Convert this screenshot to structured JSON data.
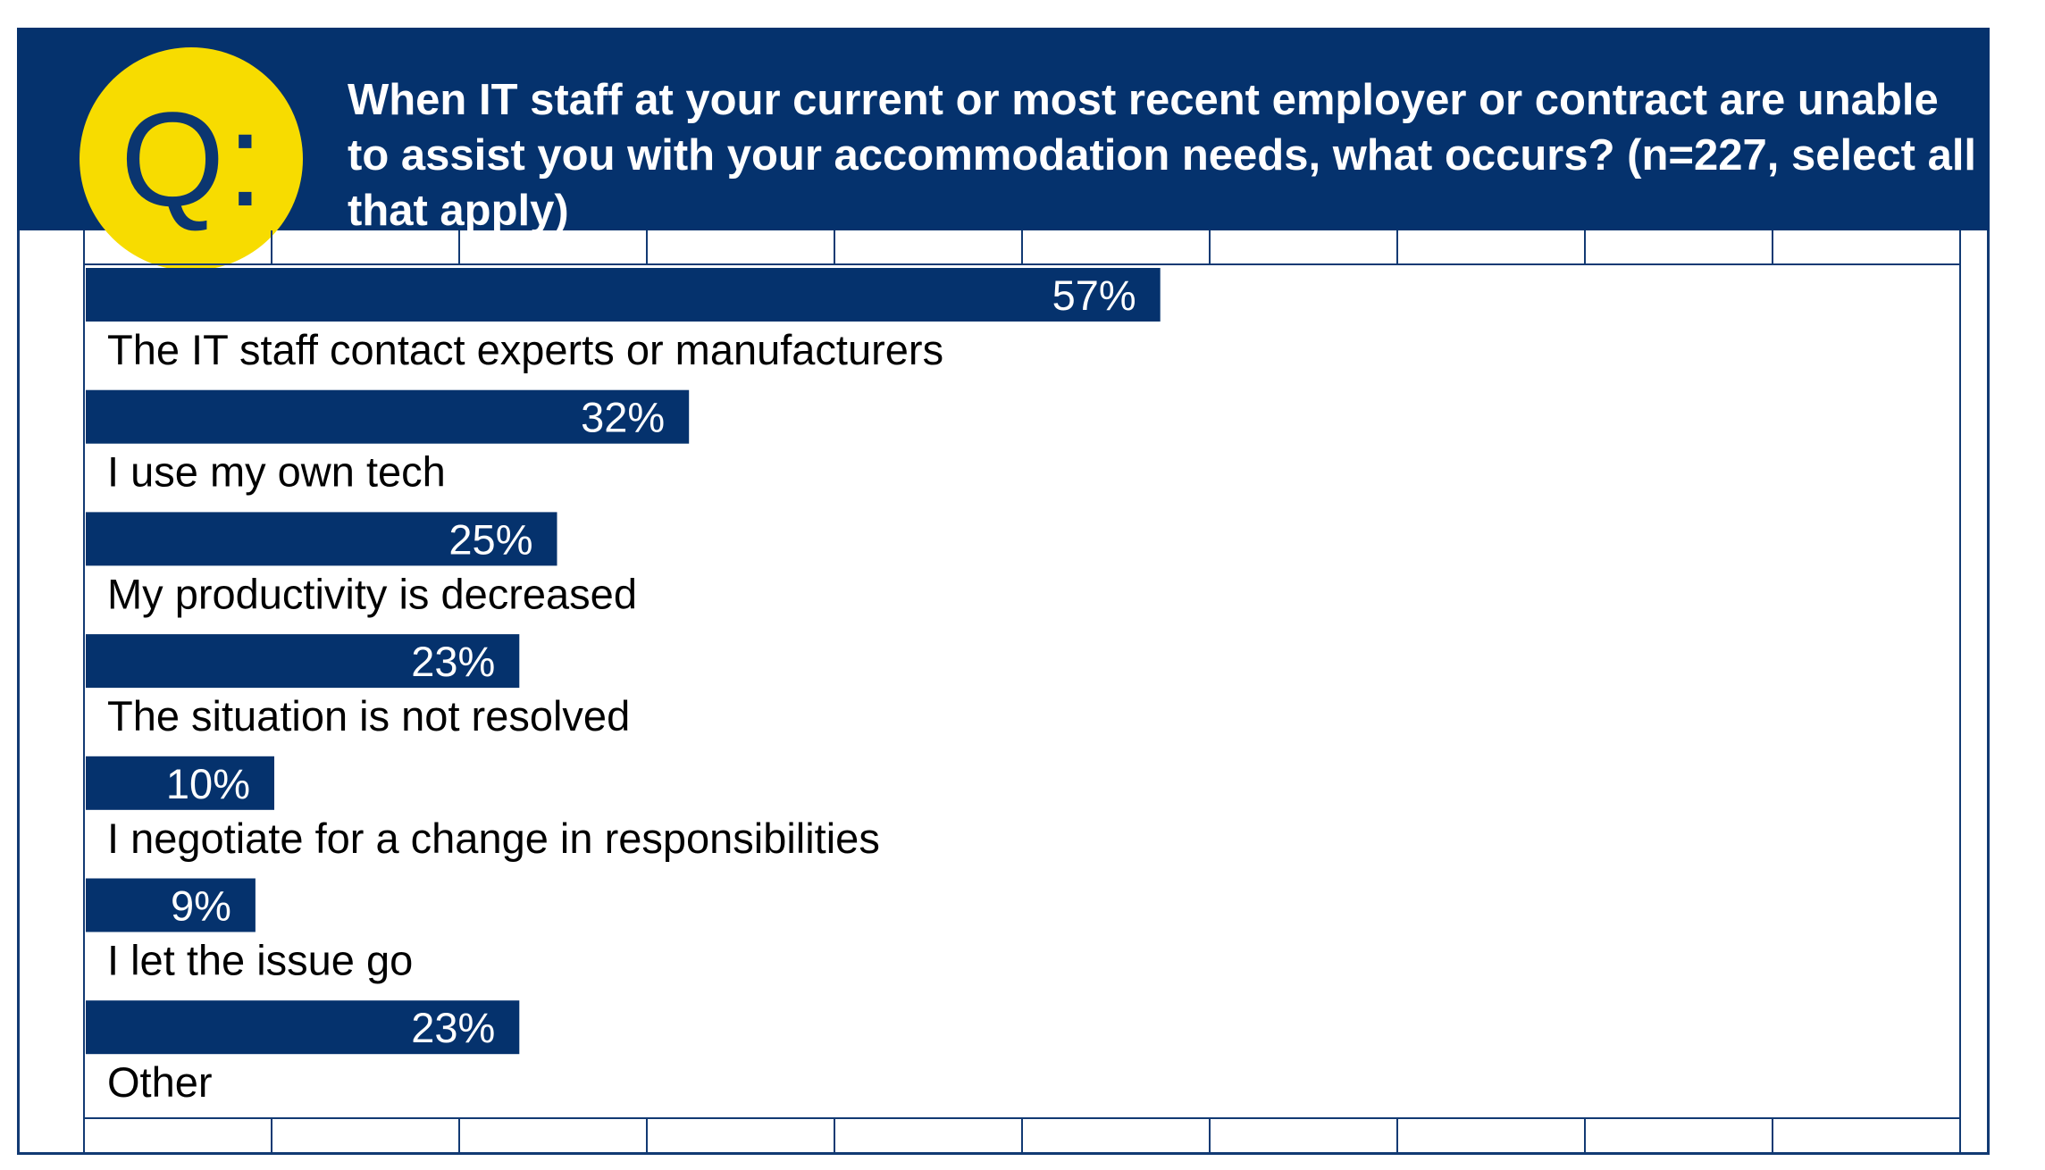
{
  "header": {
    "badge": "Q:",
    "question": "When IT staff at your current or most recent employer or contract are unable to assist you with your accommodation needs, what occurs? (n=227, select all that apply)"
  },
  "colors": {
    "navy": "#05326d",
    "yellow": "#f7dc00",
    "grid": "#123a73",
    "bar_label": "#ffffff",
    "category_label": "#000000"
  },
  "chart_data": {
    "type": "bar",
    "orientation": "horizontal",
    "categories": [
      "The IT staff contact experts or manufacturers",
      "I use my own tech",
      "My productivity is decreased",
      "The situation is not resolved",
      "I negotiate for a change in responsibilities",
      "I let the issue go",
      "Other"
    ],
    "values": [
      57,
      32,
      25,
      23,
      10,
      9,
      23
    ],
    "value_labels": [
      "57%",
      "32%",
      "25%",
      "23%",
      "10%",
      "9%",
      "23%"
    ],
    "unit": "%",
    "xlim": [
      0,
      100
    ],
    "grid": true,
    "legend": false
  }
}
